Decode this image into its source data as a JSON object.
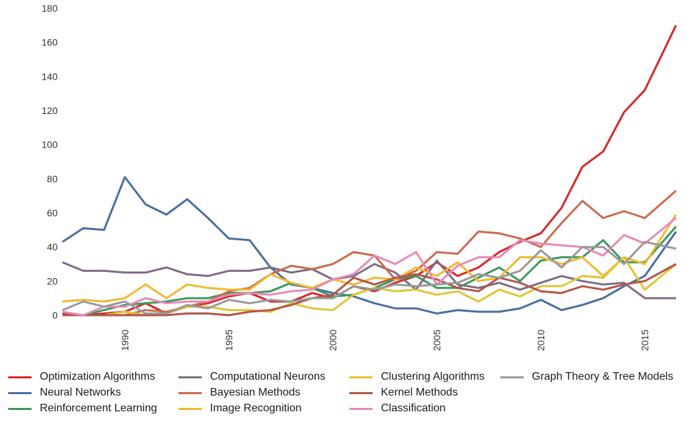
{
  "chart_data": {
    "type": "line",
    "title": "",
    "xlabel": "",
    "ylabel": "",
    "xlim": [
      1987,
      2016.5
    ],
    "ylim": [
      0,
      180
    ],
    "x_ticks": [
      1990,
      1995,
      2000,
      2005,
      2010,
      2015
    ],
    "y_ticks": [
      0,
      20,
      40,
      60,
      80,
      100,
      120,
      140,
      160,
      180
    ],
    "grid": false,
    "legend_position": "bottom",
    "x": [
      1987,
      1988,
      1989,
      1990,
      1991,
      1992,
      1993,
      1994,
      1995,
      1996,
      1997,
      1998,
      1999,
      2000,
      2001,
      2002,
      2003,
      2004,
      2005,
      2006,
      2007,
      2008,
      2009,
      2010,
      2011,
      2012,
      2013,
      2014,
      2015,
      2016.5
    ],
    "series": [
      {
        "name": "Optimization Algorithms",
        "color": "#d62728",
        "values": [
          1,
          0,
          1,
          2,
          7,
          1,
          5,
          7,
          11,
          13,
          8,
          8,
          13,
          10,
          17,
          14,
          19,
          23,
          31,
          23,
          28,
          37,
          43,
          48,
          63,
          87,
          96,
          119,
          132,
          170
        ]
      },
      {
        "name": "Neural Networks",
        "color": "#4a6fa0",
        "values": [
          43,
          51,
          50,
          81,
          65,
          59,
          68,
          57,
          45,
          44,
          28,
          18,
          16,
          13,
          11,
          7,
          4,
          4,
          1,
          3,
          2,
          2,
          4,
          9,
          3,
          6,
          10,
          17,
          23,
          49
        ]
      },
      {
        "name": "Reinforcement Learning",
        "color": "#3a9a5b",
        "values": [
          0,
          0,
          3,
          6,
          7,
          8,
          10,
          10,
          13,
          13,
          14,
          19,
          16,
          11,
          12,
          16,
          21,
          23,
          16,
          16,
          22,
          28,
          20,
          32,
          34,
          34,
          44,
          31,
          31,
          52
        ]
      },
      {
        "name": "Computational Neurons",
        "color": "#7f6b85",
        "values": [
          31,
          26,
          26,
          25,
          25,
          28,
          24,
          23,
          26,
          26,
          28,
          25,
          27,
          21,
          23,
          30,
          25,
          15,
          32,
          18,
          16,
          19,
          15,
          19,
          23,
          20,
          18,
          19,
          10,
          10
        ]
      },
      {
        "name": "Bayesian Methods",
        "color": "#cb6a4f",
        "values": [
          0,
          0,
          0,
          0,
          3,
          2,
          5,
          8,
          14,
          16,
          24,
          29,
          27,
          30,
          37,
          35,
          21,
          26,
          37,
          36,
          49,
          48,
          45,
          40,
          54,
          67,
          57,
          61,
          57,
          73
        ]
      },
      {
        "name": "Image Recognition",
        "color": "#f2b92e",
        "values": [
          8,
          9,
          8,
          10,
          18,
          10,
          18,
          16,
          15,
          15,
          24,
          19,
          16,
          21,
          18,
          22,
          21,
          28,
          23,
          31,
          20,
          22,
          34,
          34,
          30,
          34,
          23,
          34,
          30,
          59
        ]
      },
      {
        "name": "Clustering Algorithms",
        "color": "#e2c435",
        "values": [
          0,
          0,
          0,
          2,
          0,
          1,
          5,
          5,
          3,
          3,
          2,
          7,
          4,
          3,
          12,
          16,
          14,
          15,
          12,
          14,
          8,
          15,
          11,
          17,
          17,
          23,
          22,
          34,
          15,
          30
        ]
      },
      {
        "name": "Kernel Methods",
        "color": "#b2564a",
        "values": [
          0,
          0,
          0,
          0,
          0,
          0,
          1,
          1,
          0,
          2,
          3,
          6,
          10,
          12,
          22,
          18,
          22,
          24,
          21,
          16,
          14,
          22,
          19,
          14,
          13,
          17,
          15,
          18,
          20,
          30
        ]
      },
      {
        "name": "Classification",
        "color": "#e889b8",
        "values": [
          2,
          0,
          5,
          5,
          10,
          7,
          8,
          8,
          12,
          13,
          12,
          14,
          15,
          21,
          24,
          35,
          30,
          37,
          18,
          29,
          34,
          34,
          44,
          42,
          41,
          40,
          35,
          47,
          42,
          57
        ]
      },
      {
        "name": "Graph Theory & Tree Models",
        "color": "#999999",
        "values": [
          3,
          8,
          5,
          8,
          1,
          1,
          6,
          4,
          9,
          7,
          9,
          8,
          10,
          10,
          17,
          15,
          18,
          17,
          18,
          19,
          24,
          22,
          26,
          38,
          28,
          40,
          40,
          30,
          43,
          39
        ]
      }
    ]
  }
}
